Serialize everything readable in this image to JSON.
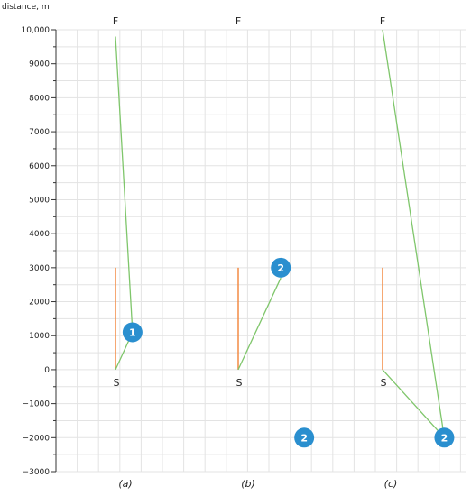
{
  "chart_data": {
    "type": "line",
    "ylabel": "distance, m",
    "ylim": [
      -3000,
      10000
    ],
    "yticks": [
      -3000,
      -2000,
      -1000,
      0,
      1000,
      2000,
      3000,
      4000,
      5000,
      6000,
      7000,
      8000,
      9000,
      10000
    ],
    "ytick_labels": [
      "−3000",
      "−2000",
      "−1000",
      "0",
      "1000",
      "2000",
      "3000",
      "4000",
      "5000",
      "6000",
      "7000",
      "8000",
      "9000",
      "10,000"
    ],
    "grid": true,
    "colors": {
      "reference": "#f28b44",
      "path": "#7fc66b",
      "marker": "#2a8fcf",
      "grid": "#e3e3e3"
    },
    "panels": [
      {
        "label": "(a)",
        "start_label": "S",
        "finish_label": "F",
        "reference_segment": {
          "y_from": 0,
          "y_to": 3000
        },
        "path": [
          {
            "x": 0,
            "y": 0
          },
          {
            "x": 0.8,
            "y": 1100
          },
          {
            "x": 0,
            "y": 9800
          }
        ],
        "markers": [
          {
            "label": "1",
            "x": 0.8,
            "y": 1100
          }
        ]
      },
      {
        "label": "(b)",
        "start_label": "S",
        "finish_label": "F",
        "reference_segment": {
          "y_from": 0,
          "y_to": 3000
        },
        "path": [
          {
            "x": 0,
            "y": 0
          },
          {
            "x": 2.0,
            "y": 2700
          }
        ],
        "markers": [
          {
            "label": "2",
            "x": 2.0,
            "y": 3000
          },
          {
            "label": "2",
            "x": 3.1,
            "y": -2000
          }
        ]
      },
      {
        "label": "(c)",
        "start_label": "S",
        "finish_label": "F",
        "reference_segment": {
          "y_from": 0,
          "y_to": 3000
        },
        "path": [
          {
            "x": 0,
            "y": 10000
          },
          {
            "x": 2.9,
            "y": -2000
          },
          {
            "x": 0,
            "y": 0
          }
        ],
        "markers": [
          {
            "label": "2",
            "x": 2.9,
            "y": -2000
          }
        ]
      }
    ]
  }
}
